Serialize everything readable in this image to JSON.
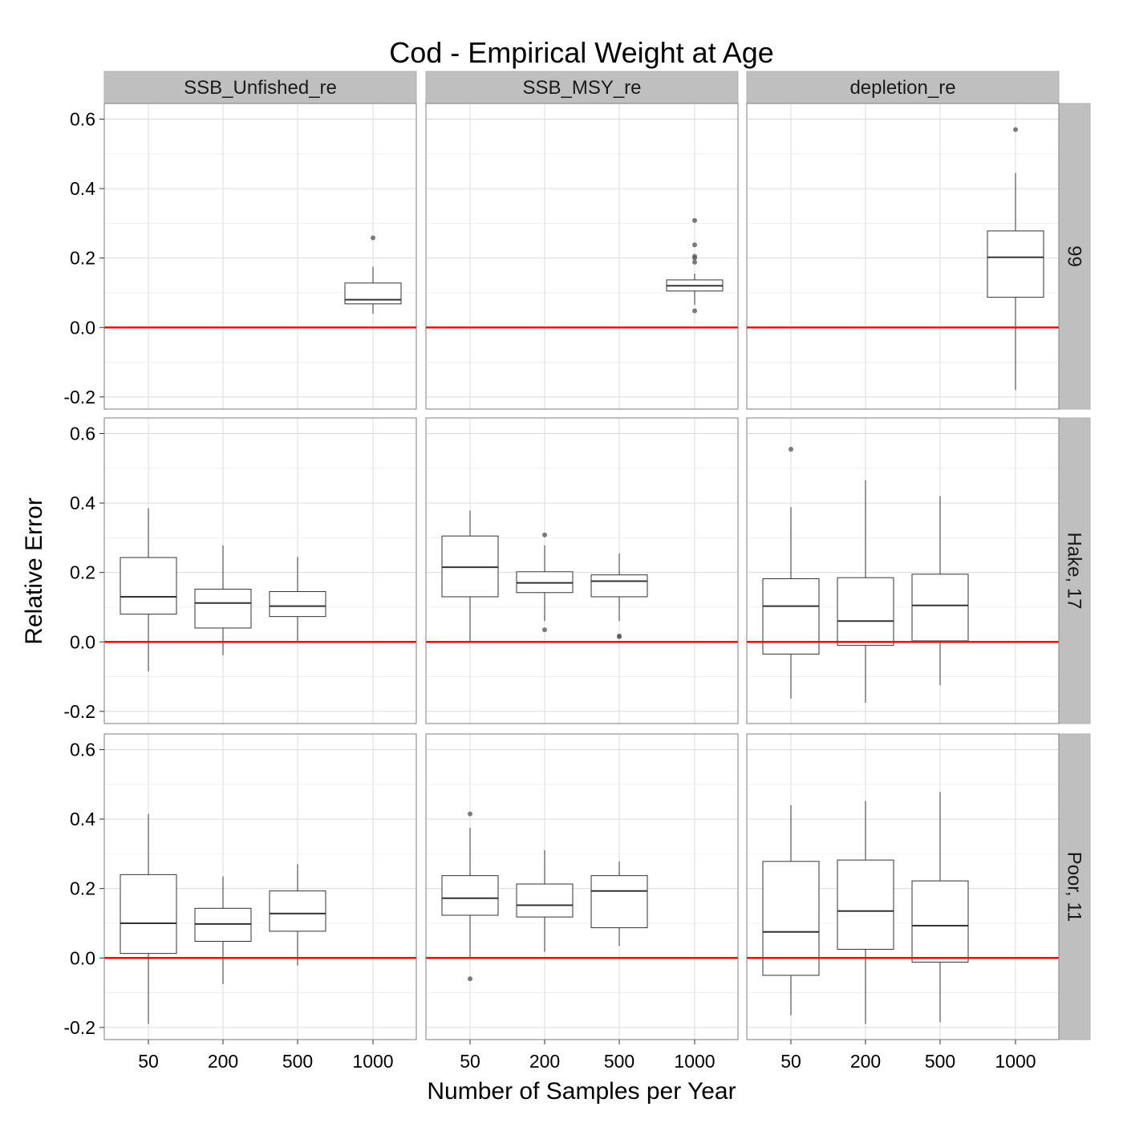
{
  "chart_data": {
    "type": "boxplot",
    "title": "Cod - Empirical Weight at Age",
    "xlabel": "Number of Samples per Year",
    "ylabel": "Relative Error",
    "categories": [
      "50",
      "200",
      "500",
      "1000"
    ],
    "y_ticks": [
      -0.2,
      0.0,
      0.2,
      0.4,
      0.6
    ],
    "y_tick_labels": [
      "-0.2",
      "0.0",
      "0.2",
      "0.4",
      "0.6"
    ],
    "ylim": [
      -0.235,
      0.645
    ],
    "reference_line": 0,
    "reference_color": "#ff0000",
    "strip_color": "#bfbfbf",
    "grid": true,
    "columns": [
      "SSB_Unfished_re",
      "SSB_MSY_re",
      "depletion_re"
    ],
    "rows": [
      "99",
      "Hake, 17",
      "Poor, 11"
    ],
    "panels": [
      {
        "row": 0,
        "col": 0,
        "boxes": [
          {
            "category": "1000",
            "whisker_low": 0.04,
            "q1": 0.068,
            "median": 0.08,
            "q3": 0.128,
            "whisker_high": 0.175,
            "outliers": [
              0.258
            ]
          }
        ]
      },
      {
        "row": 0,
        "col": 1,
        "boxes": [
          {
            "category": "1000",
            "whisker_low": 0.065,
            "q1": 0.105,
            "median": 0.12,
            "q3": 0.137,
            "whisker_high": 0.155,
            "outliers": [
              0.048,
              0.188,
              0.2,
              0.205,
              0.238,
              0.308
            ]
          }
        ]
      },
      {
        "row": 0,
        "col": 2,
        "boxes": [
          {
            "category": "1000",
            "whisker_low": -0.18,
            "q1": 0.087,
            "median": 0.202,
            "q3": 0.278,
            "whisker_high": 0.445,
            "outliers": [
              0.57
            ]
          }
        ]
      },
      {
        "row": 1,
        "col": 0,
        "boxes": [
          {
            "category": "50",
            "whisker_low": -0.085,
            "q1": 0.08,
            "median": 0.13,
            "q3": 0.243,
            "whisker_high": 0.385,
            "outliers": []
          },
          {
            "category": "200",
            "whisker_low": -0.038,
            "q1": 0.04,
            "median": 0.112,
            "q3": 0.152,
            "whisker_high": 0.278,
            "outliers": []
          },
          {
            "category": "500",
            "whisker_low": 0.002,
            "q1": 0.073,
            "median": 0.103,
            "q3": 0.145,
            "whisker_high": 0.245,
            "outliers": []
          }
        ]
      },
      {
        "row": 1,
        "col": 1,
        "boxes": [
          {
            "category": "50",
            "whisker_low": 0.002,
            "q1": 0.13,
            "median": 0.215,
            "q3": 0.305,
            "whisker_high": 0.378,
            "outliers": []
          },
          {
            "category": "200",
            "whisker_low": 0.06,
            "q1": 0.142,
            "median": 0.17,
            "q3": 0.202,
            "whisker_high": 0.278,
            "outliers": [
              0.035,
              0.308
            ]
          },
          {
            "category": "500",
            "whisker_low": 0.06,
            "q1": 0.13,
            "median": 0.175,
            "q3": 0.193,
            "whisker_high": 0.255,
            "outliers": [
              0.015,
              0.017
            ]
          }
        ]
      },
      {
        "row": 1,
        "col": 2,
        "boxes": [
          {
            "category": "50",
            "whisker_low": -0.163,
            "q1": -0.035,
            "median": 0.103,
            "q3": 0.182,
            "whisker_high": 0.388,
            "outliers": [
              0.555
            ]
          },
          {
            "category": "200",
            "whisker_low": -0.175,
            "q1": -0.01,
            "median": 0.06,
            "q3": 0.185,
            "whisker_high": 0.465,
            "outliers": []
          },
          {
            "category": "500",
            "whisker_low": -0.125,
            "q1": 0.003,
            "median": 0.105,
            "q3": 0.195,
            "whisker_high": 0.42,
            "outliers": []
          }
        ]
      },
      {
        "row": 2,
        "col": 0,
        "boxes": [
          {
            "category": "50",
            "whisker_low": -0.19,
            "q1": 0.013,
            "median": 0.1,
            "q3": 0.24,
            "whisker_high": 0.415,
            "outliers": []
          },
          {
            "category": "200",
            "whisker_low": -0.075,
            "q1": 0.048,
            "median": 0.098,
            "q3": 0.143,
            "whisker_high": 0.235,
            "outliers": []
          },
          {
            "category": "500",
            "whisker_low": -0.022,
            "q1": 0.077,
            "median": 0.128,
            "q3": 0.193,
            "whisker_high": 0.27,
            "outliers": []
          }
        ]
      },
      {
        "row": 2,
        "col": 1,
        "boxes": [
          {
            "category": "50",
            "whisker_low": 0.002,
            "q1": 0.123,
            "median": 0.172,
            "q3": 0.237,
            "whisker_high": 0.375,
            "outliers": [
              -0.06,
              0.415
            ]
          },
          {
            "category": "200",
            "whisker_low": 0.018,
            "q1": 0.118,
            "median": 0.152,
            "q3": 0.213,
            "whisker_high": 0.31,
            "outliers": []
          },
          {
            "category": "500",
            "whisker_low": 0.035,
            "q1": 0.087,
            "median": 0.193,
            "q3": 0.237,
            "whisker_high": 0.278,
            "outliers": []
          }
        ]
      },
      {
        "row": 2,
        "col": 2,
        "boxes": [
          {
            "category": "50",
            "whisker_low": -0.165,
            "q1": -0.05,
            "median": 0.075,
            "q3": 0.278,
            "whisker_high": 0.44,
            "outliers": []
          },
          {
            "category": "200",
            "whisker_low": -0.19,
            "q1": 0.025,
            "median": 0.135,
            "q3": 0.282,
            "whisker_high": 0.452,
            "outliers": []
          },
          {
            "category": "500",
            "whisker_low": -0.185,
            "q1": -0.012,
            "median": 0.093,
            "q3": 0.222,
            "whisker_high": 0.478,
            "outliers": []
          }
        ]
      }
    ]
  }
}
